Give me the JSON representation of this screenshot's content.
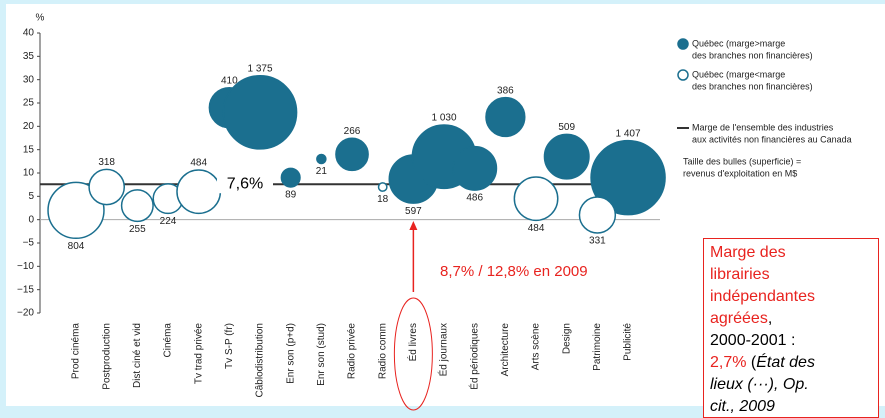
{
  "chart_data": {
    "type": "bubble",
    "y_unit": "%",
    "categories": [
      "Prod cinéma",
      "Postproduction",
      "Dist ciné et vid",
      "Cinéma",
      "Tv trad privée",
      "Tv S-P (fr)",
      "Câblodistribution",
      "Enr son (p+d)",
      "Enr son (stud)",
      "Radio privée",
      "Radio comm",
      "Éd livres",
      "Éd journaux",
      "Éd périodiques",
      "Architecture",
      "Arts scène",
      "Design",
      "Patrimoine",
      "Publicité"
    ],
    "series": [
      {
        "name": [
          "Québec (marge>marge",
          "des branches non financières)"
        ],
        "color": "#1b6f8f",
        "filled": true,
        "values": [
          null,
          null,
          null,
          null,
          null,
          24,
          23,
          9,
          13,
          14,
          null,
          8.7,
          13.5,
          11,
          22,
          null,
          13.5,
          null,
          9
        ],
        "sizes": [
          null,
          null,
          null,
          null,
          null,
          410,
          1375,
          89,
          21,
          266,
          null,
          597,
          1030,
          486,
          386,
          null,
          509,
          null,
          1407
        ],
        "size_labels": [
          null,
          null,
          null,
          null,
          null,
          "410",
          "1 375",
          "89",
          "21",
          "266",
          null,
          "597",
          "1 030",
          "486",
          "386",
          null,
          "509",
          null,
          "1 407"
        ]
      },
      {
        "name": [
          "Québec (marge<marge",
          "des branches non financières)"
        ],
        "color": "#1b6f8f",
        "filled": false,
        "values": [
          2,
          7,
          3,
          4.5,
          6,
          null,
          null,
          null,
          null,
          null,
          7,
          null,
          null,
          null,
          null,
          4.5,
          null,
          1,
          null
        ],
        "sizes": [
          804,
          318,
          255,
          224,
          484,
          null,
          null,
          null,
          null,
          null,
          18,
          null,
          null,
          null,
          null,
          484,
          null,
          331,
          null
        ],
        "size_labels": [
          "804",
          "318",
          "255",
          "224",
          "484",
          null,
          null,
          null,
          null,
          null,
          "18",
          null,
          null,
          null,
          null,
          "484",
          null,
          "331",
          null
        ]
      }
    ],
    "ylim": [
      -20,
      40
    ],
    "yticks": [
      {
        "value": -20,
        "label": "−20"
      },
      {
        "value": -15,
        "label": "−15"
      },
      {
        "value": -10,
        "label": "−10"
      },
      {
        "value": -5,
        "label": "−5"
      },
      0,
      5,
      10,
      15,
      20,
      25,
      30,
      35,
      40
    ],
    "reference_line": {
      "value": 7.6,
      "label": "7,6%",
      "name": [
        "Marge de l'ensemble des industries",
        "aux activités non financières au Canada"
      ],
      "color": "#333333"
    },
    "size_note": [
      "Taille des bulles (superficie) =",
      "revenus d'exploitation en M$"
    ],
    "annotation": {
      "text": "8,7% / 12,8% en 2009",
      "color": "#e8231f",
      "category": 11
    },
    "note_box": {
      "color": "#e8231f",
      "lines": [
        [
          {
            "text": "Marge des",
            "color": "#e8231f",
            "italic": false
          }
        ],
        [
          {
            "text": "librairies",
            "color": "#e8231f",
            "italic": false
          }
        ],
        [
          {
            "text": "indépendantes",
            "color": "#e8231f",
            "italic": false
          }
        ],
        [
          {
            "text": "agréées",
            "color": "#e8231f",
            "italic": false
          },
          {
            "text": ",",
            "color": "#000000",
            "italic": false
          }
        ],
        [
          {
            "text": "2000-2001 :",
            "color": "#000000",
            "italic": false
          }
        ],
        [
          {
            "text": "2,7%",
            "color": "#e8231f",
            "italic": false
          },
          {
            "text": " (",
            "color": "#000000",
            "italic": false
          },
          {
            "text": "État des",
            "color": "#000000",
            "italic": true
          }
        ],
        [
          {
            "text": "lieux (···), Op.",
            "color": "#000000",
            "italic": true
          }
        ],
        [
          {
            "text": "cit., 2009",
            "color": "#000000",
            "italic": true
          }
        ]
      ]
    }
  }
}
